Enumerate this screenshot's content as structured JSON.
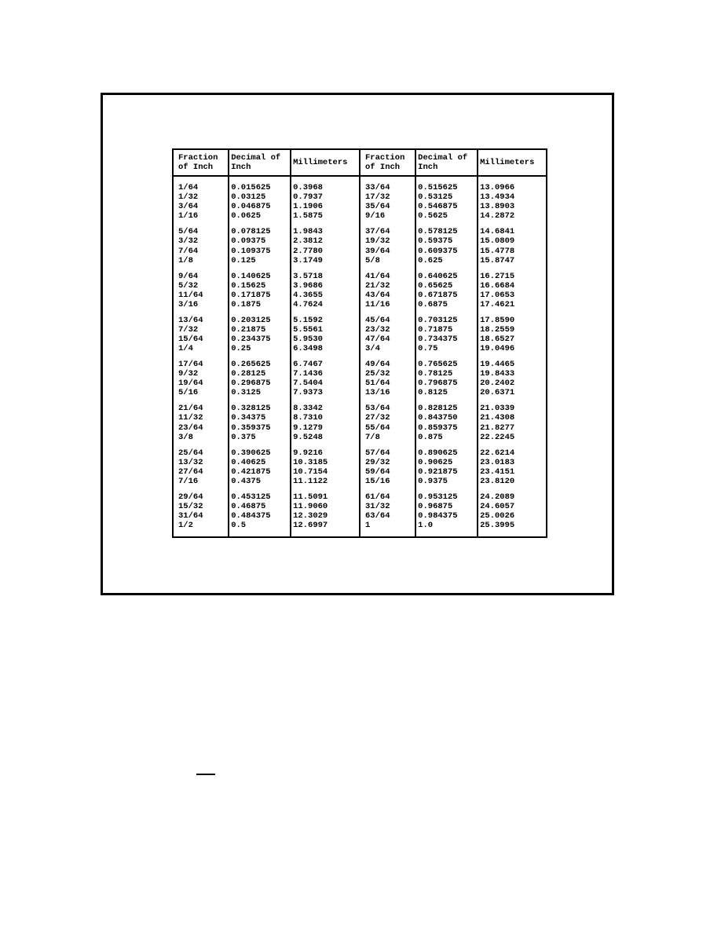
{
  "page": {
    "background_color": "#ffffff",
    "border_color": "#000000",
    "font_family": "Courier New",
    "header_fontsize": 10.5,
    "cell_fontsize": 10.5,
    "font_weight": "bold"
  },
  "headers": {
    "fraction": "Fraction of Inch",
    "decimal": "Decimal of Inch",
    "mm": "Millimeters"
  },
  "groups_left": [
    [
      {
        "f": "1/64",
        "d": "0.015625",
        "m": "0.3968"
      },
      {
        "f": "1/32",
        "d": "0.03125",
        "m": "0.7937"
      },
      {
        "f": "3/64",
        "d": "0.046875",
        "m": "1.1906"
      },
      {
        "f": "1/16",
        "d": "0.0625",
        "m": "1.5875"
      }
    ],
    [
      {
        "f": "5/64",
        "d": "0.078125",
        "m": "1.9843"
      },
      {
        "f": "3/32",
        "d": "0.09375",
        "m": "2.3812"
      },
      {
        "f": "7/64",
        "d": "0.109375",
        "m": "2.7780"
      },
      {
        "f": "1/8",
        "d": "0.125",
        "m": "3.1749"
      }
    ],
    [
      {
        "f": "9/64",
        "d": "0.140625",
        "m": "3.5718"
      },
      {
        "f": "5/32",
        "d": "0.15625",
        "m": "3.9686"
      },
      {
        "f": "11/64",
        "d": "0.171875",
        "m": "4.3655"
      },
      {
        "f": "3/16",
        "d": "0.1875",
        "m": "4.7624"
      }
    ],
    [
      {
        "f": "13/64",
        "d": "0.203125",
        "m": "5.1592"
      },
      {
        "f": "7/32",
        "d": "0.21875",
        "m": "5.5561"
      },
      {
        "f": "15/64",
        "d": "0.234375",
        "m": "5.9530"
      },
      {
        "f": "1/4",
        "d": "0.25",
        "m": "6.3498"
      }
    ],
    [
      {
        "f": "17/64",
        "d": "0.265625",
        "m": "6.7467"
      },
      {
        "f": "9/32",
        "d": "0.28125",
        "m": "7.1436"
      },
      {
        "f": "19/64",
        "d": "0.296875",
        "m": "7.5404"
      },
      {
        "f": "5/16",
        "d": "0.3125",
        "m": "7.9373"
      }
    ],
    [
      {
        "f": "21/64",
        "d": "0.328125",
        "m": "8.3342"
      },
      {
        "f": "11/32",
        "d": "0.34375",
        "m": "8.7310"
      },
      {
        "f": "23/64",
        "d": "0.359375",
        "m": "9.1279"
      },
      {
        "f": "3/8",
        "d": "0.375",
        "m": "9.5248"
      }
    ],
    [
      {
        "f": "25/64",
        "d": "0.390625",
        "m": "9.9216"
      },
      {
        "f": "13/32",
        "d": "0.40625",
        "m": "10.3185"
      },
      {
        "f": "27/64",
        "d": "0.421875",
        "m": "10.7154"
      },
      {
        "f": "7/16",
        "d": "0.4375",
        "m": "11.1122"
      }
    ],
    [
      {
        "f": "29/64",
        "d": "0.453125",
        "m": "11.5091"
      },
      {
        "f": "15/32",
        "d": "0.46875",
        "m": "11.9060"
      },
      {
        "f": "31/64",
        "d": "0.484375",
        "m": "12.3029"
      },
      {
        "f": "1/2",
        "d": "0.5",
        "m": "12.6997"
      }
    ]
  ],
  "groups_right": [
    [
      {
        "f": "33/64",
        "d": "0.515625",
        "m": "13.0966"
      },
      {
        "f": "17/32",
        "d": "0.53125",
        "m": "13.4934"
      },
      {
        "f": "35/64",
        "d": "0.546875",
        "m": "13.8903"
      },
      {
        "f": "9/16",
        "d": "0.5625",
        "m": "14.2872"
      }
    ],
    [
      {
        "f": "37/64",
        "d": "0.578125",
        "m": "14.6841"
      },
      {
        "f": "19/32",
        "d": "0.59375",
        "m": "15.0809"
      },
      {
        "f": "39/64",
        "d": "0.609375",
        "m": "15.4778"
      },
      {
        "f": "5/8",
        "d": "0.625",
        "m": "15.8747"
      }
    ],
    [
      {
        "f": "41/64",
        "d": "0.640625",
        "m": "16.2715"
      },
      {
        "f": "21/32",
        "d": "0.65625",
        "m": "16.6684"
      },
      {
        "f": "43/64",
        "d": "0.671875",
        "m": "17.0653"
      },
      {
        "f": "11/16",
        "d": "0.6875",
        "m": "17.4621"
      }
    ],
    [
      {
        "f": "45/64",
        "d": "0.703125",
        "m": "17.8590"
      },
      {
        "f": "23/32",
        "d": "0.71875",
        "m": "18.2559"
      },
      {
        "f": "47/64",
        "d": "0.734375",
        "m": "18.6527"
      },
      {
        "f": "3/4",
        "d": "0.75",
        "m": "19.0496"
      }
    ],
    [
      {
        "f": "49/64",
        "d": "0.765625",
        "m": "19.4465"
      },
      {
        "f": "25/32",
        "d": "0.78125",
        "m": "19.8433"
      },
      {
        "f": "51/64",
        "d": "0.796875",
        "m": "20.2402"
      },
      {
        "f": "13/16",
        "d": "0.8125",
        "m": "20.6371"
      }
    ],
    [
      {
        "f": "53/64",
        "d": "0.828125",
        "m": "21.0339"
      },
      {
        "f": "27/32",
        "d": "0.843750",
        "m": "21.4308"
      },
      {
        "f": "55/64",
        "d": "0.859375",
        "m": "21.8277"
      },
      {
        "f": "7/8",
        "d": "0.875",
        "m": "22.2245"
      }
    ],
    [
      {
        "f": "57/64",
        "d": "0.890625",
        "m": "22.6214"
      },
      {
        "f": "29/32",
        "d": "0.90625",
        "m": "23.0183"
      },
      {
        "f": "59/64",
        "d": "0.921875",
        "m": "23.4151"
      },
      {
        "f": "15/16",
        "d": "0.9375",
        "m": "23.8120"
      }
    ],
    [
      {
        "f": "61/64",
        "d": "0.953125",
        "m": "24.2089"
      },
      {
        "f": "31/32",
        "d": "0.96875",
        "m": "24.6057"
      },
      {
        "f": "63/64",
        "d": "0.984375",
        "m": "25.0026"
      },
      {
        "f": "1",
        "d": "1.0",
        "m": "25.3995"
      }
    ]
  ]
}
